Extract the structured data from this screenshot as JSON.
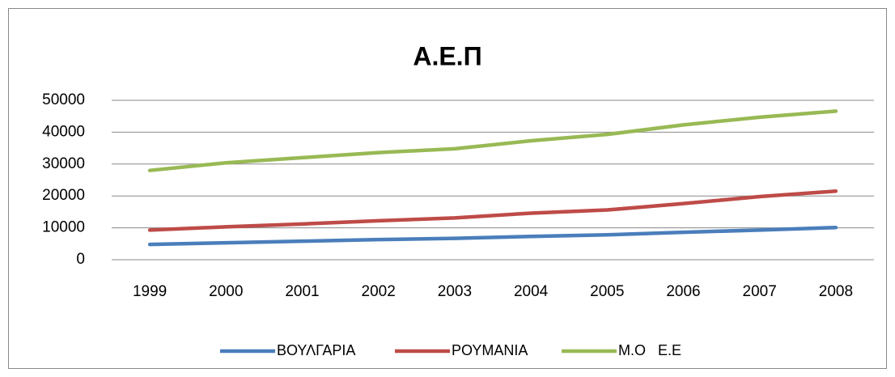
{
  "chart_data": {
    "type": "line",
    "title": "Α.Ε.Π",
    "categories": [
      "1999",
      "2000",
      "2001",
      "2002",
      "2003",
      "2004",
      "2005",
      "2006",
      "2007",
      "2008"
    ],
    "series": [
      {
        "name": "ΒΟΥΛΓΑΡΙΑ",
        "color": "#4a7ebb",
        "values": [
          4800,
          5300,
          5800,
          6300,
          6700,
          7300,
          7800,
          8600,
          9300,
          10100
        ]
      },
      {
        "name": "ΡΟΥΜΑΝΙΑ",
        "color": "#be4b48",
        "values": [
          9300,
          10300,
          11200,
          12200,
          13100,
          14600,
          15600,
          17600,
          19800,
          21500
        ]
      },
      {
        "name": "Μ.Ο   Ε.Ε",
        "color": "#98b954",
        "values": [
          28000,
          30400,
          32000,
          33600,
          34800,
          37300,
          39300,
          42300,
          44700,
          46600
        ]
      }
    ],
    "ylim": [
      0,
      50000
    ],
    "yticks": [
      0,
      10000,
      20000,
      30000,
      40000,
      50000
    ],
    "grid": true,
    "legend": "bottom"
  }
}
